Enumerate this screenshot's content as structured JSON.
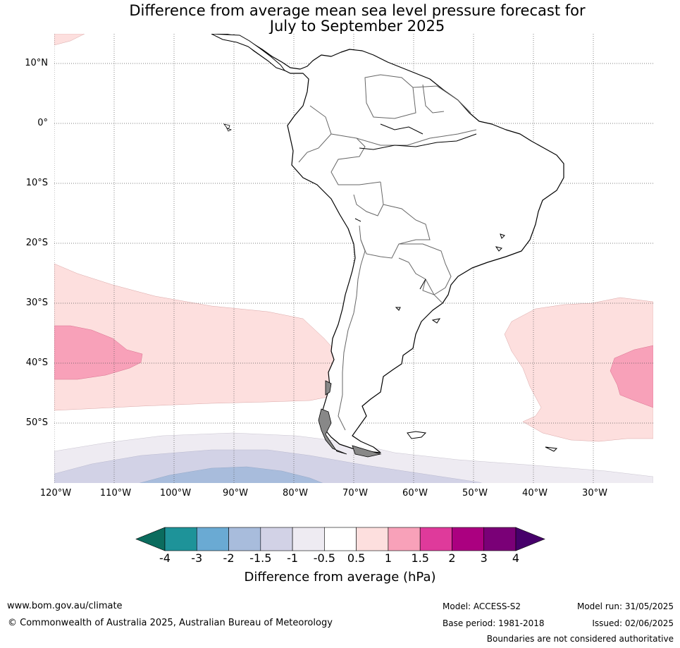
{
  "title_line1": "Difference from average mean sea level pressure forecast for",
  "title_line2": "July to September 2025",
  "map": {
    "lat_labels": [
      "10°N",
      "0°",
      "10°S",
      "20°S",
      "30°S",
      "40°S",
      "50°S"
    ],
    "lon_labels": [
      "120°W",
      "110°W",
      "100°W",
      "90°W",
      "80°W",
      "70°W",
      "60°W",
      "50°W",
      "40°W",
      "30°W"
    ],
    "region": "South America",
    "anomaly_regions": [
      {
        "area": "South-east Pacific",
        "class": "0.5 to 1"
      },
      {
        "area": "Pacific west of Chile",
        "class": "1 to 1.5"
      },
      {
        "area": "South Atlantic",
        "class": "0.5 to 1"
      },
      {
        "area": "South Atlantic east",
        "class": "1 to 1.5"
      },
      {
        "area": "Southern Ocean band",
        "class": "-0.5 to -1"
      },
      {
        "area": "Southern Ocean far south",
        "class": "-1 to -1.5"
      },
      {
        "area": "Southern Ocean far south west",
        "class": "-1.5 to -2"
      }
    ]
  },
  "colorbar": {
    "ticks": [
      "-4",
      "-3",
      "-2",
      "-1.5",
      "-1",
      "-0.5",
      "0.5",
      "1",
      "1.5",
      "2",
      "3",
      "4"
    ],
    "colors": [
      "#1e9399",
      "#6aaad3",
      "#a8bcdc",
      "#d2d2e6",
      "#eeebf2",
      "#ffffff",
      "#fddfde",
      "#f8a1b9",
      "#df3a9b",
      "#ab0080",
      "#7a0077"
    ],
    "under_color": "#0b6c5e",
    "over_color": "#46006a",
    "label": "Difference from average (hPa)"
  },
  "footer": {
    "url": "www.bom.gov.au/climate",
    "copyright": "© Commonwealth of Australia 2025, Australian Bureau of Meteorology",
    "model": "Model: ACCESS-S2",
    "base_period": "Base period: 1981-2018",
    "model_run": "Model run: 31/05/2025",
    "issued": "Issued: 02/06/2025",
    "disclaimer": "Boundaries are not considered authoritative"
  }
}
